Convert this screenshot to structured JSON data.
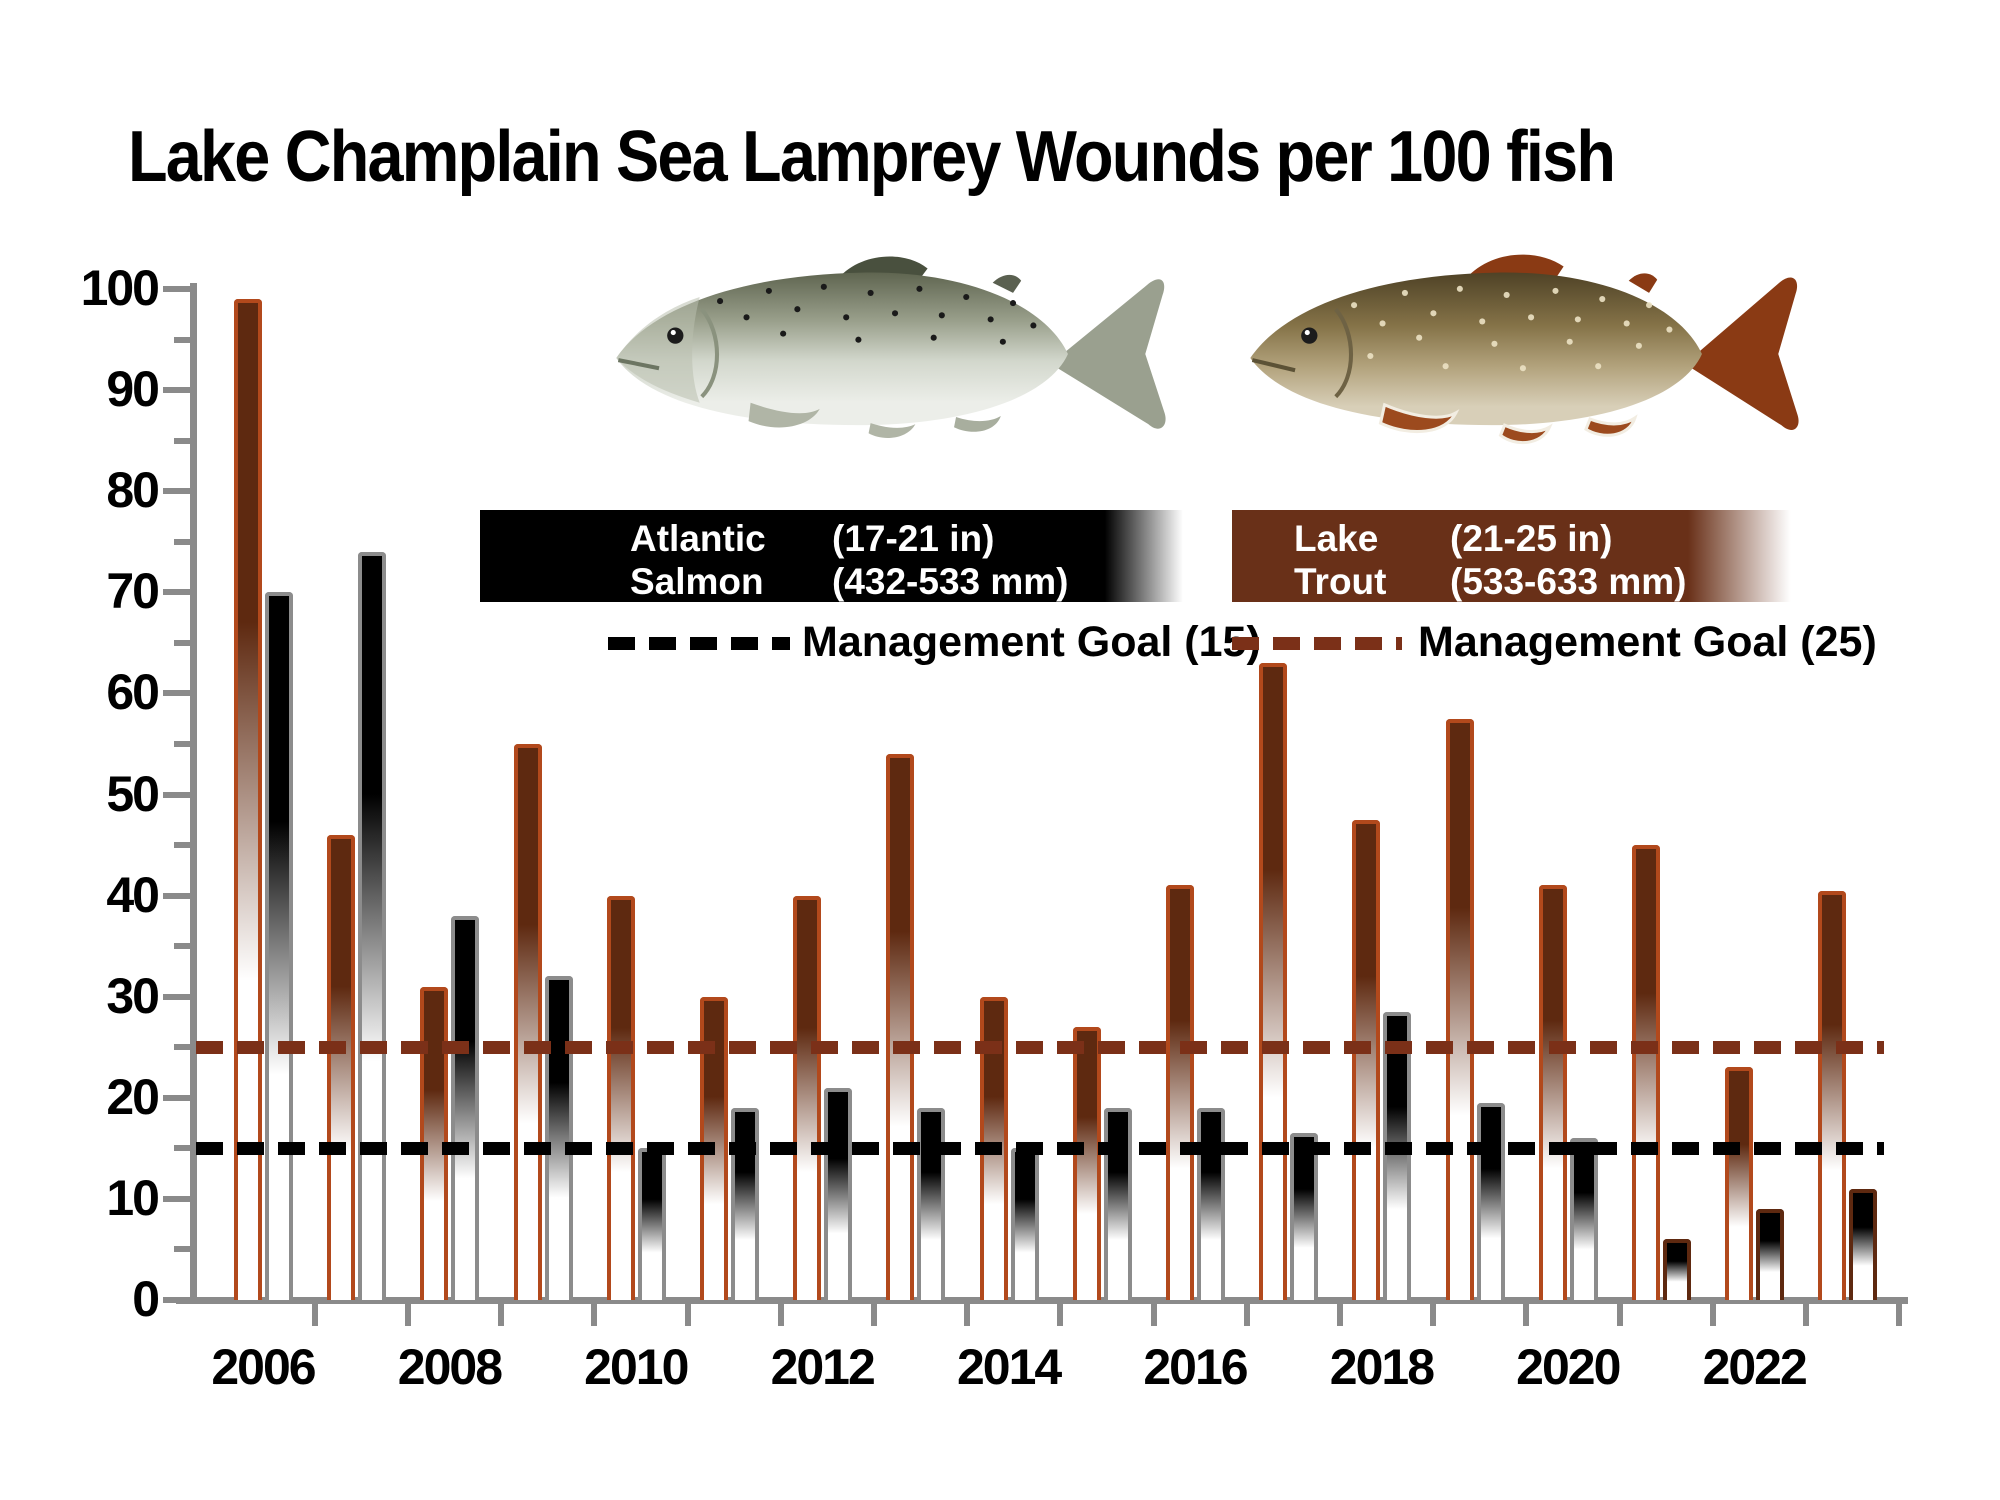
{
  "title": "Lake Champlain Sea Lamprey Wounds per 100 fish",
  "colors": {
    "lake_trout_fill": "#5E2910",
    "lake_trout_outline": "#B2491C",
    "salmon_fill": "#000000",
    "salmon_outline": "#8C8C8C",
    "salmon_outline_late_years": "#5E2910",
    "trout_goal_dash": "#7B3018",
    "salmon_goal_dash": "#000000",
    "legend_salmon_box": "#000000",
    "legend_trout_box": "#693018",
    "axis_gray": "#8A8A8A"
  },
  "legend": {
    "salmon": {
      "name_line1": "Atlantic",
      "name_line2": "Salmon",
      "size_in": "(17-21 in)",
      "size_mm": "(432-533 mm)",
      "goal_label": "Management Goal (15)",
      "goal_value": 15
    },
    "trout": {
      "name_line1": "Lake",
      "name_line2": "Trout",
      "size_in": "(21-25 in)",
      "size_mm": "(533-633 mm)",
      "goal_label": "Management Goal (25)",
      "goal_value": 25
    }
  },
  "chart_data": {
    "type": "bar",
    "title": "Lake Champlain Sea Lamprey Wounds per 100 fish",
    "categories": [
      2006,
      2007,
      2008,
      2009,
      2010,
      2011,
      2012,
      2013,
      2014,
      2015,
      2016,
      2017,
      2018,
      2019,
      2020,
      2021,
      2022,
      2023
    ],
    "series": [
      {
        "name": "Lake Trout",
        "color": "#5E2910",
        "values": [
          99,
          46,
          31,
          55,
          40,
          30,
          40,
          54,
          30,
          27,
          41,
          63,
          47.5,
          57.5,
          41,
          45,
          23,
          40.5
        ]
      },
      {
        "name": "Atlantic Salmon",
        "color": "#000000",
        "values": [
          70,
          74,
          38,
          32,
          15,
          19,
          21,
          19,
          15,
          19,
          19,
          16.5,
          28.5,
          19.5,
          16,
          6,
          9,
          11
        ]
      }
    ],
    "goal_lines": [
      {
        "name": "Lake Trout Management Goal",
        "value": 25,
        "color": "#7B3018"
      },
      {
        "name": "Atlantic Salmon Management Goal",
        "value": 15,
        "color": "#000000"
      }
    ],
    "ylim": [
      0,
      100
    ],
    "ytick_major": 10,
    "ytick_minor": 5,
    "x_axis_labels": [
      "2006",
      "2008",
      "2010",
      "2012",
      "2014",
      "2016",
      "2018",
      "2020",
      "2022"
    ],
    "legend_position": "top-center",
    "grid": false
  }
}
